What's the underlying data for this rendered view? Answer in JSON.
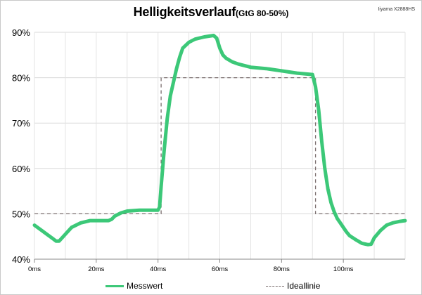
{
  "chart_data": {
    "type": "line",
    "title": "Helligkeitsverlauf",
    "subtitle": "(GtG 80-50%)",
    "corner_label": "Iiyama X2888HS",
    "xlabel": "",
    "ylabel": "",
    "xlim": [
      0,
      120
    ],
    "ylim": [
      40,
      90
    ],
    "x_ticks": [
      "0ms",
      "20ms",
      "40ms",
      "60ms",
      "80ms",
      "100ms"
    ],
    "y_ticks": [
      "40%",
      "50%",
      "60%",
      "70%",
      "80%",
      "90%"
    ],
    "grid": true,
    "legend_position": "bottom",
    "series": [
      {
        "name": "Messwert",
        "color": "#3cc878",
        "style": "solid",
        "x": [
          0,
          2,
          4,
          6,
          7,
          8,
          10,
          12,
          15,
          18,
          21,
          24,
          25,
          26,
          28,
          30,
          34,
          38,
          40,
          40.5,
          41,
          42,
          43,
          44,
          45,
          46,
          47,
          48,
          50,
          52,
          55,
          58,
          59,
          60,
          61,
          62,
          64,
          66,
          70,
          75,
          80,
          85,
          90,
          91,
          92,
          93,
          94,
          95,
          96,
          97,
          98,
          99,
          100,
          101,
          102,
          104,
          106,
          108,
          109,
          110,
          112,
          114,
          116,
          118,
          120
        ],
        "y": [
          47.5,
          46.5,
          45.5,
          44.5,
          44,
          44,
          45.5,
          47,
          48,
          48.5,
          48.5,
          48.5,
          48.8,
          49.5,
          50.2,
          50.6,
          50.8,
          50.8,
          50.8,
          51.5,
          56,
          64,
          71,
          76,
          79,
          82,
          84.5,
          86.5,
          87.8,
          88.5,
          89,
          89.3,
          88.7,
          86.5,
          85,
          84.3,
          83.5,
          83,
          82.3,
          82,
          81.5,
          81,
          80.7,
          78,
          73,
          66,
          60,
          55.5,
          52.5,
          50.5,
          49,
          48,
          47,
          46,
          45.2,
          44.3,
          43.5,
          43.2,
          43.3,
          44.7,
          46.3,
          47.5,
          48,
          48.3,
          48.5
        ]
      },
      {
        "name": "Ideallinie",
        "color": "#7a6e6e",
        "style": "dashed",
        "x": [
          0,
          41,
          41,
          91,
          91,
          120
        ],
        "y": [
          50,
          50,
          80,
          80,
          50,
          50
        ]
      }
    ]
  }
}
